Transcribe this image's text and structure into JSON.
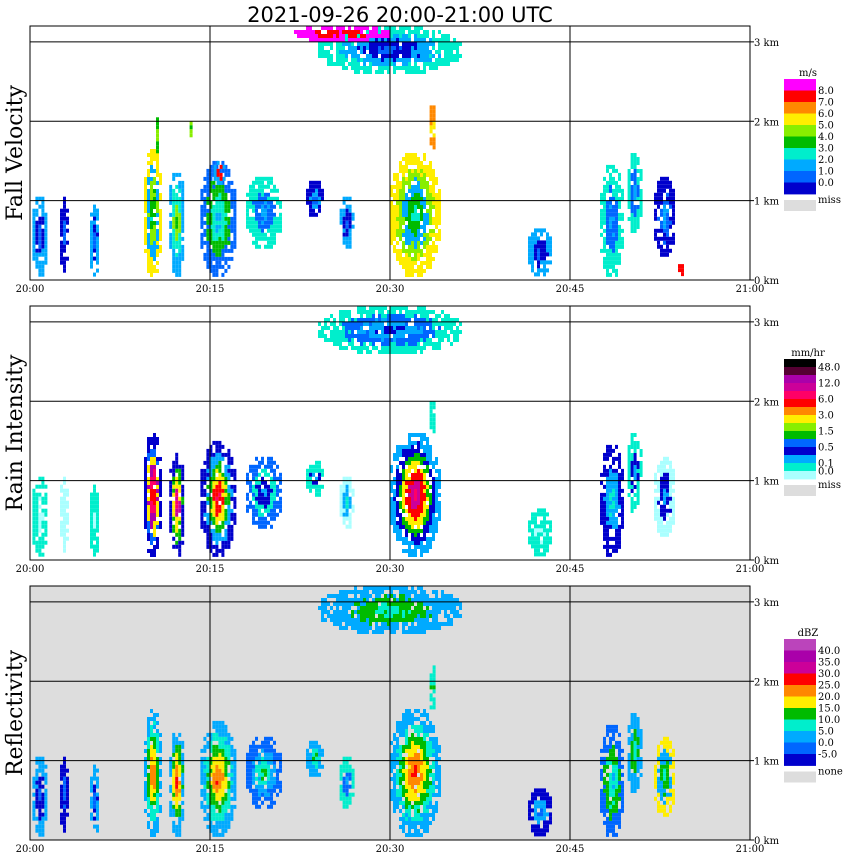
{
  "title": "2021-09-26   20:00-21:00 UTC",
  "time_ticks": [
    "20:00",
    "20:15",
    "20:30",
    "20:45",
    "21:00"
  ],
  "height_ticks": [
    "0 km",
    "1 km",
    "2 km",
    "3 km"
  ],
  "colors": {
    "grid": "#000000",
    "missing_background": "#dddddd",
    "panel_background": "#ffffff"
  },
  "chart_data": [
    {
      "type": "heatmap",
      "ylabel": "Fall Velocity",
      "xlabel": "",
      "x_range": [
        "20:00",
        "21:00"
      ],
      "y_range_km": [
        0,
        3.2
      ],
      "colorbar": {
        "unit": "m/s",
        "levels": [
          "8.0",
          "7.0",
          "6.0",
          "5.0",
          "4.0",
          "3.0",
          "2.0",
          "1.0",
          "0.0"
        ],
        "colors": [
          "#ff00ff",
          "#ff0000",
          "#ff8800",
          "#ffee00",
          "#88ee00",
          "#00bb00",
          "#00eecc",
          "#00aaff",
          "#0066ff",
          "#0000cc"
        ],
        "missing_label": "miss",
        "missing_color": "#dddddd"
      },
      "background": "#ffffff",
      "echoes": [
        {
          "t0": 0.2,
          "t1": 1.5,
          "z0": 0.05,
          "z1": 1.05,
          "c": [
            8,
            9,
            7
          ]
        },
        {
          "t0": 2.5,
          "t1": 3.2,
          "z0": 0.1,
          "z1": 1.05,
          "c": [
            8,
            9
          ]
        },
        {
          "t0": 5.0,
          "t1": 5.8,
          "z0": 0.05,
          "z1": 0.95,
          "c": [
            8,
            9,
            7
          ]
        },
        {
          "t0": 9.5,
          "t1": 11.0,
          "z0": 0.05,
          "z1": 1.65,
          "c": [
            6,
            5,
            4,
            7,
            3
          ]
        },
        {
          "t0": 11.6,
          "t1": 12.9,
          "z0": 0.05,
          "z1": 1.4,
          "c": [
            5,
            4,
            6,
            7
          ]
        },
        {
          "t0": 10.5,
          "t1": 10.8,
          "z0": 1.6,
          "z1": 2.05,
          "c": [
            4,
            5
          ]
        },
        {
          "t0": 13.3,
          "t1": 13.6,
          "z0": 1.8,
          "z1": 2.0,
          "c": [
            5,
            4
          ]
        },
        {
          "t0": 14.2,
          "t1": 17.2,
          "z0": 0.05,
          "z1": 1.5,
          "c": [
            7,
            6,
            5,
            8
          ]
        },
        {
          "t0": 15.3,
          "t1": 16.3,
          "z0": 1.2,
          "z1": 1.5,
          "c": [
            0,
            1,
            7
          ]
        },
        {
          "t0": 18.0,
          "t1": 21.0,
          "z0": 0.4,
          "z1": 1.3,
          "c": [
            7,
            8,
            6
          ]
        },
        {
          "t0": 23.0,
          "t1": 24.5,
          "z0": 0.8,
          "z1": 1.25,
          "c": [
            8,
            7,
            9
          ]
        },
        {
          "t0": 25.8,
          "t1": 27.0,
          "z0": 0.4,
          "z1": 1.05,
          "c": [
            8,
            9,
            7
          ]
        },
        {
          "t0": 30.0,
          "t1": 34.2,
          "z0": 0.05,
          "z1": 1.6,
          "c": [
            6,
            5,
            7,
            4,
            3
          ]
        },
        {
          "t0": 33.3,
          "t1": 33.8,
          "z0": 1.6,
          "z1": 2.2,
          "c": [
            4,
            3,
            2
          ]
        },
        {
          "t0": 24.0,
          "t1": 36.0,
          "z0": 2.6,
          "z1": 3.2,
          "c": [
            8,
            9,
            7,
            6
          ]
        },
        {
          "t0": 22.0,
          "t1": 30.0,
          "z0": 3.0,
          "z1": 3.2,
          "c": [
            0,
            1,
            0
          ]
        },
        {
          "t0": 41.5,
          "t1": 43.5,
          "z0": 0.05,
          "z1": 0.65,
          "c": [
            8,
            9,
            7
          ]
        },
        {
          "t0": 47.5,
          "t1": 49.5,
          "z0": 0.05,
          "z1": 1.45,
          "c": [
            7,
            8,
            6
          ]
        },
        {
          "t0": 49.8,
          "t1": 51.0,
          "z0": 0.6,
          "z1": 1.6,
          "c": [
            7,
            8,
            6
          ]
        },
        {
          "t0": 52.0,
          "t1": 53.8,
          "z0": 0.3,
          "z1": 1.3,
          "c": [
            7,
            8,
            9
          ]
        },
        {
          "t0": 54.0,
          "t1": 54.5,
          "z0": 0.02,
          "z1": 0.2,
          "c": [
            0,
            1
          ]
        }
      ]
    },
    {
      "type": "heatmap",
      "ylabel": "Rain Intensity",
      "xlabel": "",
      "x_range": [
        "20:00",
        "21:00"
      ],
      "y_range_km": [
        0,
        3.2
      ],
      "colorbar": {
        "unit": "mm/hr",
        "levels": [
          "48.0",
          "",
          "12.0",
          "",
          "6.0",
          "",
          "3.0",
          "",
          "1.5",
          "",
          "0.5",
          "",
          "0.1",
          "0.0"
        ],
        "colors": [
          "#000000",
          "#550033",
          "#aa00aa",
          "#cc0099",
          "#ff0066",
          "#ff0000",
          "#ff8800",
          "#ffee00",
          "#88ee00",
          "#00bb00",
          "#0066ff",
          "#0000cc",
          "#00aaff",
          "#00eecc",
          "#aaffff"
        ],
        "missing_label": "miss",
        "missing_color": "#dddddd"
      },
      "background": "#ffffff",
      "echoes": [
        {
          "t0": 0.2,
          "t1": 1.5,
          "z0": 0.05,
          "z1": 1.05,
          "c": [
            14,
            13
          ]
        },
        {
          "t0": 2.5,
          "t1": 3.2,
          "z0": 0.1,
          "z1": 1.05,
          "c": [
            14
          ]
        },
        {
          "t0": 5.0,
          "t1": 5.8,
          "z0": 0.05,
          "z1": 0.95,
          "c": [
            14,
            13
          ]
        },
        {
          "t0": 9.5,
          "t1": 11.0,
          "z0": 0.05,
          "z1": 1.6,
          "c": [
            3,
            5,
            4,
            2,
            7,
            10,
            11
          ]
        },
        {
          "t0": 11.6,
          "t1": 12.9,
          "z0": 0.05,
          "z1": 1.35,
          "c": [
            4,
            3,
            7,
            9,
            11
          ]
        },
        {
          "t0": 14.2,
          "t1": 17.2,
          "z0": 0.05,
          "z1": 1.5,
          "c": [
            4,
            5,
            7,
            9,
            12,
            11
          ]
        },
        {
          "t0": 18.0,
          "t1": 21.0,
          "z0": 0.4,
          "z1": 1.3,
          "c": [
            12,
            11,
            13,
            10
          ]
        },
        {
          "t0": 23.0,
          "t1": 24.5,
          "z0": 0.8,
          "z1": 1.25,
          "c": [
            12,
            11,
            13
          ]
        },
        {
          "t0": 25.8,
          "t1": 27.0,
          "z0": 0.4,
          "z1": 1.05,
          "c": [
            13,
            12,
            14
          ]
        },
        {
          "t0": 30.0,
          "t1": 34.2,
          "z0": 0.05,
          "z1": 1.6,
          "c": [
            4,
            3,
            5,
            7,
            9,
            11,
            12
          ]
        },
        {
          "t0": 33.3,
          "t1": 33.8,
          "z0": 1.6,
          "z1": 2.0,
          "c": [
            12,
            13
          ]
        },
        {
          "t0": 24.0,
          "t1": 36.0,
          "z0": 2.6,
          "z1": 3.2,
          "c": [
            11,
            12,
            10,
            13
          ]
        },
        {
          "t0": 41.5,
          "t1": 43.5,
          "z0": 0.05,
          "z1": 0.65,
          "c": [
            14,
            13
          ]
        },
        {
          "t0": 47.5,
          "t1": 49.5,
          "z0": 0.05,
          "z1": 1.45,
          "c": [
            13,
            12,
            11
          ]
        },
        {
          "t0": 49.8,
          "t1": 51.0,
          "z0": 0.6,
          "z1": 1.6,
          "c": [
            12,
            11,
            13
          ]
        },
        {
          "t0": 52.0,
          "t1": 53.8,
          "z0": 0.3,
          "z1": 1.3,
          "c": [
            12,
            11,
            14
          ]
        }
      ]
    },
    {
      "type": "heatmap",
      "ylabel": "Reflectivity",
      "xlabel": "",
      "x_range": [
        "20:00",
        "21:00"
      ],
      "y_range_km": [
        0,
        3.2
      ],
      "colorbar": {
        "unit": "dBZ",
        "levels": [
          "40.0",
          "35.0",
          "30.0",
          "25.0",
          "20.0",
          "15.0",
          "10.0",
          "5.0",
          "0.0",
          "-5.0"
        ],
        "colors": [
          "#bb44bb",
          "#aa00aa",
          "#cc0099",
          "#ff0000",
          "#ff8800",
          "#ffee00",
          "#00bb00",
          "#00eecc",
          "#00aaff",
          "#0066ff",
          "#0000cc"
        ],
        "missing_label": "none",
        "missing_color": "#dddddd"
      },
      "background": "#dddddd",
      "echoes": [
        {
          "t0": 0.2,
          "t1": 1.5,
          "z0": 0.05,
          "z1": 1.05,
          "c": [
            9,
            10,
            8
          ]
        },
        {
          "t0": 2.5,
          "t1": 3.2,
          "z0": 0.1,
          "z1": 1.05,
          "c": [
            9,
            10
          ]
        },
        {
          "t0": 5.0,
          "t1": 5.8,
          "z0": 0.05,
          "z1": 0.95,
          "c": [
            9,
            10,
            8
          ]
        },
        {
          "t0": 9.5,
          "t1": 11.0,
          "z0": 0.05,
          "z1": 1.65,
          "c": [
            3,
            4,
            5,
            6,
            7,
            8
          ]
        },
        {
          "t0": 11.6,
          "t1": 12.9,
          "z0": 0.05,
          "z1": 1.4,
          "c": [
            3,
            4,
            5,
            6,
            8
          ]
        },
        {
          "t0": 14.2,
          "t1": 17.2,
          "z0": 0.05,
          "z1": 1.5,
          "c": [
            3,
            4,
            5,
            6,
            7,
            8
          ]
        },
        {
          "t0": 18.0,
          "t1": 21.0,
          "z0": 0.4,
          "z1": 1.3,
          "c": [
            6,
            7,
            8,
            9
          ]
        },
        {
          "t0": 23.0,
          "t1": 24.5,
          "z0": 0.8,
          "z1": 1.25,
          "c": [
            6,
            7,
            8
          ]
        },
        {
          "t0": 25.8,
          "t1": 27.0,
          "z0": 0.4,
          "z1": 1.05,
          "c": [
            8,
            9,
            7
          ]
        },
        {
          "t0": 30.0,
          "t1": 34.2,
          "z0": 0.05,
          "z1": 1.65,
          "c": [
            3,
            4,
            5,
            6,
            7,
            8
          ]
        },
        {
          "t0": 33.3,
          "t1": 33.8,
          "z0": 1.6,
          "z1": 2.2,
          "c": [
            5,
            6,
            7
          ]
        },
        {
          "t0": 24.0,
          "t1": 36.0,
          "z0": 2.6,
          "z1": 3.2,
          "c": [
            7,
            6,
            8
          ]
        },
        {
          "t0": 41.5,
          "t1": 43.5,
          "z0": 0.05,
          "z1": 0.65,
          "c": [
            9,
            8,
            10
          ]
        },
        {
          "t0": 47.5,
          "t1": 49.5,
          "z0": 0.05,
          "z1": 1.45,
          "c": [
            8,
            7,
            6,
            9
          ]
        },
        {
          "t0": 49.8,
          "t1": 51.0,
          "z0": 0.6,
          "z1": 1.6,
          "c": [
            7,
            6,
            8
          ]
        },
        {
          "t0": 52.0,
          "t1": 53.8,
          "z0": 0.3,
          "z1": 1.3,
          "c": [
            7,
            6,
            8,
            5
          ]
        }
      ]
    }
  ]
}
